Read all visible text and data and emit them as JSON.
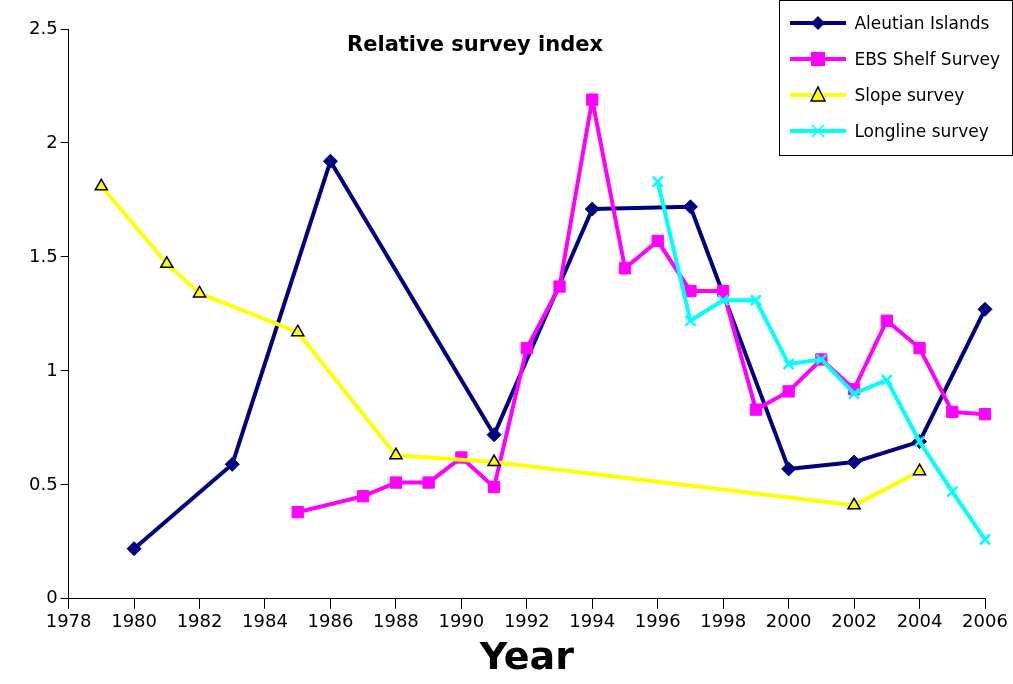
{
  "chart_data": {
    "type": "line",
    "title": "Relative survey index",
    "xlabel": "Year",
    "xlim": [
      1978,
      2006
    ],
    "xticks": [
      1978,
      1980,
      1982,
      1984,
      1986,
      1988,
      1990,
      1992,
      1994,
      1996,
      1998,
      2000,
      2002,
      2004,
      2006
    ],
    "ylim": [
      0,
      2.5
    ],
    "yticks": [
      0,
      0.5,
      1,
      1.5,
      2,
      2.5
    ],
    "grid": false,
    "legend": "top right",
    "line_style": "solid",
    "series": [
      {
        "name": "Aleutian Islands",
        "color": "#000080",
        "marker": "diamond",
        "x": [
          1980,
          1983,
          1986,
          1991,
          1994,
          1997,
          2000,
          2002,
          2004,
          2006
        ],
        "values": [
          0.22,
          0.59,
          1.92,
          0.72,
          1.71,
          1.72,
          0.57,
          0.6,
          0.69,
          1.27
        ]
      },
      {
        "name": "EBS Shelf Survey",
        "color": "#ff00ff",
        "marker": "square",
        "x": [
          1985,
          1987,
          1988,
          1989,
          1990,
          1991,
          1992,
          1993,
          1994,
          1995,
          1996,
          1997,
          1998,
          1999,
          2000,
          2001,
          2002,
          2003,
          2004,
          2005,
          2006
        ],
        "values": [
          0.38,
          0.45,
          0.51,
          0.51,
          0.62,
          0.49,
          1.1,
          1.37,
          2.19,
          1.45,
          1.57,
          1.35,
          1.35,
          0.83,
          0.91,
          1.05,
          0.92,
          1.22,
          1.1,
          0.82,
          0.81
        ]
      },
      {
        "name": "Slope survey",
        "color": "#ffff00",
        "marker": "triangle",
        "x": [
          1979,
          1981,
          1982,
          1985,
          1988,
          1991,
          2002,
          2004
        ],
        "values": [
          1.81,
          1.47,
          1.34,
          1.17,
          0.63,
          0.6,
          0.41,
          0.56
        ]
      },
      {
        "name": "Longline survey",
        "color": "#00ffff",
        "marker": "cross",
        "x": [
          1996,
          1997,
          1998,
          1999,
          2000,
          2001,
          2002,
          2003,
          2004,
          2005,
          2006
        ],
        "values": [
          1.83,
          1.22,
          1.31,
          1.31,
          1.03,
          1.05,
          0.9,
          0.96,
          0.69,
          0.47,
          0.26
        ]
      }
    ]
  }
}
